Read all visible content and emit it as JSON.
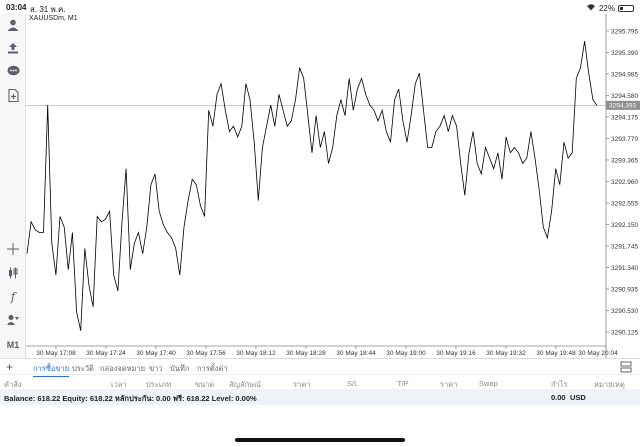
{
  "status_bar": {
    "time": "03:04",
    "date": "ส. 31 พ.ค.",
    "battery_pct": "22%",
    "battery_level": 0.22
  },
  "sidebar": {
    "items": [
      {
        "icon": "account-icon"
      },
      {
        "icon": "export-icon"
      },
      {
        "icon": "chat-icon"
      },
      {
        "icon": "document-plus-icon"
      },
      {
        "icon": "crosshair-icon"
      },
      {
        "icon": "candlestick-icon"
      },
      {
        "icon": "function-icon"
      },
      {
        "icon": "objects-icon"
      }
    ],
    "timeframe": "M1"
  },
  "chart": {
    "symbol": "XAUUSDm, M1",
    "current_price": "3294.393"
  },
  "chart_data": {
    "type": "line",
    "symbol": "XAUUSDm",
    "timeframe": "M1",
    "x_tick_labels": [
      "30 May 17:08",
      "30 May 17:24",
      "30 May 17:40",
      "30 May 17:56",
      "30 May 18:12",
      "30 May 18:28",
      "30 May 18:44",
      "30 May 19:00",
      "30 May 19:16",
      "30 May 19:32",
      "30 May 19:48",
      "30 May 20:04"
    ],
    "y_tick_labels": [
      "3295.795",
      "3295.390",
      "3294.985",
      "3294.580",
      "3294.175",
      "3293.770",
      "3293.365",
      "3292.960",
      "3292.555",
      "3292.150",
      "3291.745",
      "3291.340",
      "3290.935",
      "3290.530",
      "3290.125"
    ],
    "ylim": [
      3289.9,
      3296.0
    ],
    "current_price": 3294.393,
    "values": [
      3291.6,
      3292.2,
      3292.05,
      3292.0,
      3292.0,
      3294.4,
      3291.8,
      3291.2,
      3292.3,
      3292.1,
      3291.3,
      3292.0,
      3290.5,
      3290.15,
      3291.7,
      3291.0,
      3290.6,
      3292.3,
      3292.2,
      3292.25,
      3292.4,
      3291.2,
      3290.9,
      3292.2,
      3293.2,
      3291.3,
      3291.8,
      3292.0,
      3291.6,
      3292.1,
      3292.9,
      3293.1,
      3292.4,
      3292.15,
      3292.0,
      3291.9,
      3291.7,
      3291.2,
      3292.1,
      3292.6,
      3293.0,
      3292.9,
      3292.5,
      3292.3,
      3294.3,
      3294.0,
      3294.6,
      3294.8,
      3294.3,
      3293.9,
      3294.0,
      3293.8,
      3294.0,
      3294.8,
      3294.5,
      3293.7,
      3292.6,
      3293.6,
      3294.0,
      3294.4,
      3294.0,
      3294.6,
      3294.3,
      3294.0,
      3294.1,
      3294.5,
      3295.1,
      3294.9,
      3294.2,
      3293.5,
      3294.2,
      3293.6,
      3293.9,
      3293.3,
      3293.6,
      3294.2,
      3294.5,
      3294.2,
      3294.9,
      3294.3,
      3294.7,
      3294.9,
      3294.6,
      3294.4,
      3294.3,
      3294.1,
      3294.3,
      3293.9,
      3293.7,
      3294.5,
      3294.7,
      3294.1,
      3293.7,
      3294.2,
      3294.8,
      3295.0,
      3294.3,
      3293.6,
      3293.6,
      3293.9,
      3294.0,
      3294.2,
      3293.9,
      3294.2,
      3294.0,
      3293.3,
      3292.7,
      3293.5,
      3293.9,
      3293.3,
      3293.1,
      3293.6,
      3293.4,
      3293.2,
      3293.5,
      3293.0,
      3293.8,
      3293.5,
      3293.6,
      3293.5,
      3293.3,
      3293.4,
      3293.9,
      3293.4,
      3292.8,
      3292.1,
      3291.9,
      3292.4,
      3293.2,
      3292.9,
      3293.7,
      3293.4,
      3293.5,
      3294.9,
      3295.1,
      3295.6,
      3295.0,
      3294.5,
      3294.393
    ],
    "line_color": "#000000",
    "price_line_color": "#b9b9b9",
    "grid": false
  },
  "tabs": [
    {
      "label": "การซื้อขาย",
      "active": true
    },
    {
      "label": "ประวัติ",
      "active": false
    },
    {
      "label": "กล่องจดหมาย",
      "active": false
    },
    {
      "label": "ข่าว",
      "active": false
    },
    {
      "label": "บันทึก",
      "active": false
    },
    {
      "label": "การตั้งค่า",
      "active": false
    }
  ],
  "columns": [
    "คำสั่ง",
    "เวลา",
    "ประเภท",
    "ขนาด",
    "สัญลักษณ์",
    "ราคา",
    "S/L",
    "T/P",
    "ราคา",
    "Swap",
    "กำไร",
    "หมายเหตุ"
  ],
  "balance": {
    "text": "Balance: 618.22 Equity: 618.22 หลักประกัน: 0.00 ฟรี: 618.22 Level: 0.00%",
    "total_value": "0.00",
    "currency": "USD"
  }
}
